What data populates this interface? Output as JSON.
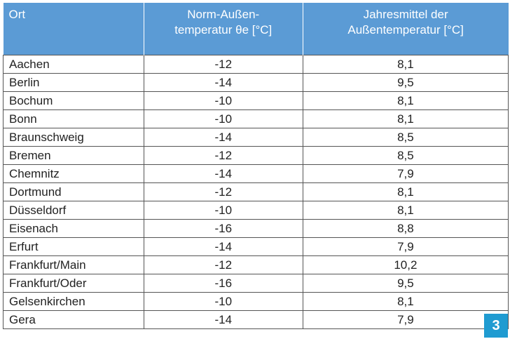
{
  "table": {
    "header": [
      [
        "Ort"
      ],
      [
        "Norm-Außen-",
        "temperatur θe [°C]"
      ],
      [
        "Jahresmittel der",
        "Außentemperatur [°C]"
      ]
    ],
    "rows": [
      [
        "Aachen",
        "-12",
        "8,1"
      ],
      [
        "Berlin",
        "-14",
        "9,5"
      ],
      [
        "Bochum",
        "-10",
        "8,1"
      ],
      [
        "Bonn",
        "-10",
        "8,1"
      ],
      [
        "Braunschweig",
        "-14",
        "8,5"
      ],
      [
        "Bremen",
        "-12",
        "8,5"
      ],
      [
        "Chemnitz",
        "-14",
        "7,9"
      ],
      [
        "Dortmund",
        "-12",
        "8,1"
      ],
      [
        "Düsseldorf",
        "-10",
        "8,1"
      ],
      [
        "Eisenach",
        "-16",
        "8,8"
      ],
      [
        "Erfurt",
        "-14",
        "7,9"
      ],
      [
        "Frankfurt/Main",
        "-12",
        "10,2"
      ],
      [
        "Frankfurt/Oder",
        "-16",
        "9,5"
      ],
      [
        "Gelsenkirchen",
        "-10",
        "8,1"
      ],
      [
        "Gera",
        "-14",
        "7,9"
      ]
    ]
  },
  "figure_number": "3"
}
